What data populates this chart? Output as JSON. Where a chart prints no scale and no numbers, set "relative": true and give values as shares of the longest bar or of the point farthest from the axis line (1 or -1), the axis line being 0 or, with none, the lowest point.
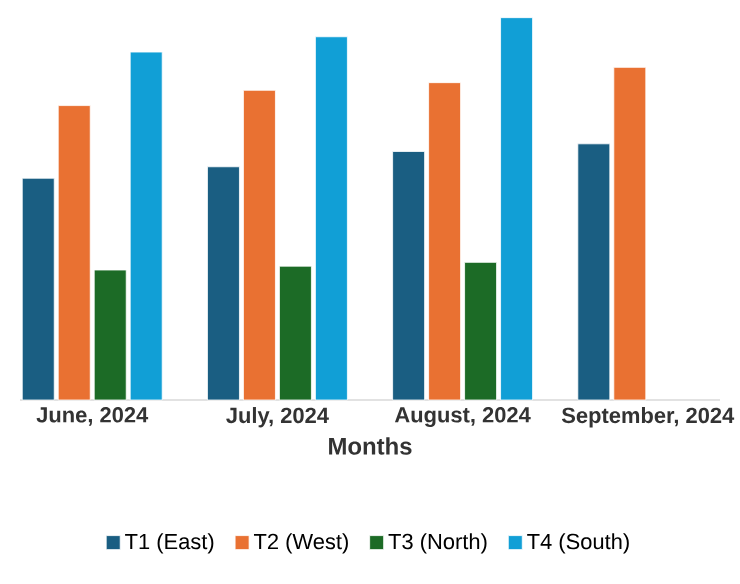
{
  "chart_data": {
    "type": "bar",
    "relative": true,
    "xlabel": "Months",
    "categories": [
      "June, 2024",
      "July, 2024",
      "August, 2024",
      "September, 2024"
    ],
    "series": [
      {
        "name": "T1 (East)",
        "color": "#1a5e82",
        "values": [
          0.58,
          0.61,
          0.65,
          0.67
        ]
      },
      {
        "name": "T2 (West)",
        "color": "#e97132",
        "values": [
          0.77,
          0.81,
          0.83,
          0.87
        ]
      },
      {
        "name": "T3 (North)",
        "color": "#1c6b26",
        "values": [
          0.34,
          0.35,
          0.36,
          null
        ]
      },
      {
        "name": "T4 (South)",
        "color": "#119fd6",
        "values": [
          0.91,
          0.95,
          1,
          null
        ]
      }
    ],
    "legend": "bottom"
  }
}
